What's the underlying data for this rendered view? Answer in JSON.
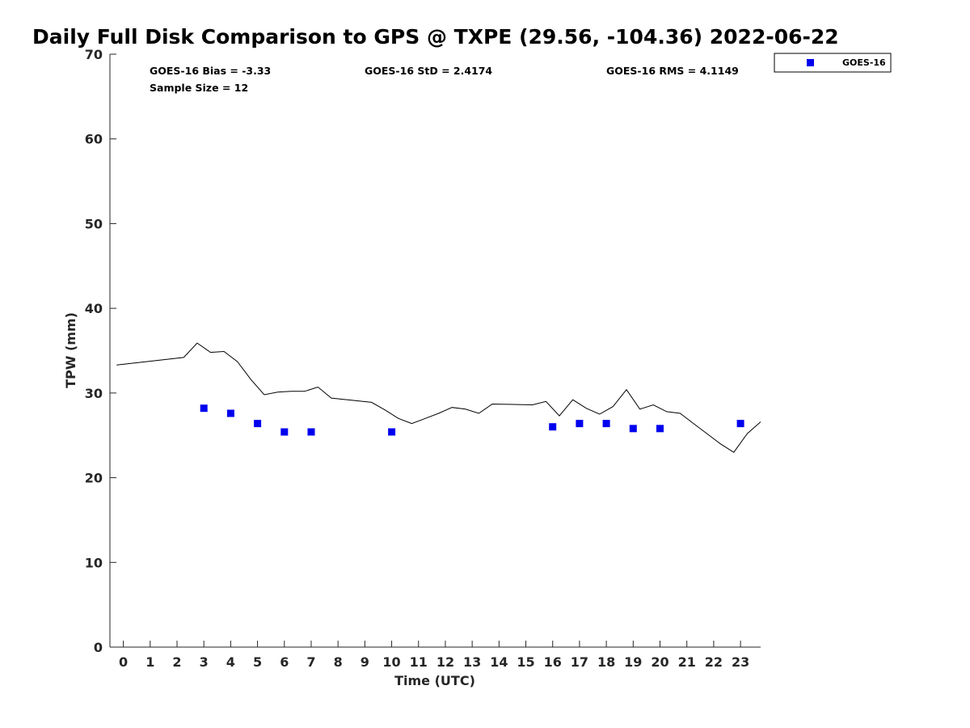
{
  "chart_data": {
    "type": "scatter",
    "title": "Daily Full Disk Comparison to GPS @ TXPE (29.56, -104.36) 2022-06-22",
    "xlabel": "Time (UTC)",
    "ylabel": "TPW (mm)",
    "xlim": [
      -0.5,
      23.75
    ],
    "ylim": [
      0,
      70
    ],
    "x_ticks": [
      0,
      1,
      2,
      3,
      4,
      5,
      6,
      7,
      8,
      9,
      10,
      11,
      12,
      13,
      14,
      15,
      16,
      17,
      18,
      19,
      20,
      21,
      22,
      23
    ],
    "y_ticks": [
      0,
      10,
      20,
      30,
      40,
      50,
      60,
      70
    ],
    "grid": false,
    "legend_position": "top-right outside",
    "stats": [
      "GOES-16 Bias = -3.33",
      "GOES-16 StD = 2.4174",
      "GOES-16 RMS = 4.1149",
      "Sample Size = 12"
    ],
    "series": [
      {
        "name": "GPS",
        "kind": "line",
        "color": "#000000",
        "x": [
          -0.25,
          2.25,
          2.75,
          3.25,
          3.75,
          4.25,
          4.75,
          5.25,
          5.75,
          6.25,
          6.75,
          7.25,
          7.75,
          9.25,
          9.75,
          10.25,
          10.75,
          11.25,
          11.75,
          12.25,
          12.75,
          13.25,
          13.75,
          15.25,
          15.75,
          16.25,
          16.75,
          17.25,
          17.75,
          18.25,
          18.75,
          19.25,
          19.75,
          20.25,
          20.75,
          21.25,
          21.75,
          22.25,
          22.75,
          23.25,
          23.75
        ],
        "y": [
          33.3,
          34.2,
          35.9,
          34.8,
          34.9,
          33.7,
          31.6,
          29.8,
          30.1,
          30.2,
          30.2,
          30.7,
          29.4,
          28.9,
          28.0,
          27.0,
          26.4,
          27.0,
          27.6,
          28.3,
          28.1,
          27.6,
          28.7,
          28.6,
          29.0,
          27.3,
          29.2,
          28.2,
          27.5,
          28.4,
          30.4,
          28.1,
          28.6,
          27.8,
          27.6,
          26.4,
          25.2,
          24.0,
          23.0,
          25.2,
          26.6
        ]
      },
      {
        "name": "GOES-16",
        "kind": "scatter",
        "color": "#0000ee",
        "x": [
          3,
          4,
          5,
          6,
          7,
          10,
          16,
          17,
          18,
          19,
          20,
          23
        ],
        "y": [
          28.2,
          27.6,
          26.4,
          25.4,
          25.4,
          25.4,
          26.0,
          26.4,
          26.4,
          25.8,
          25.8,
          26.4
        ]
      }
    ]
  }
}
